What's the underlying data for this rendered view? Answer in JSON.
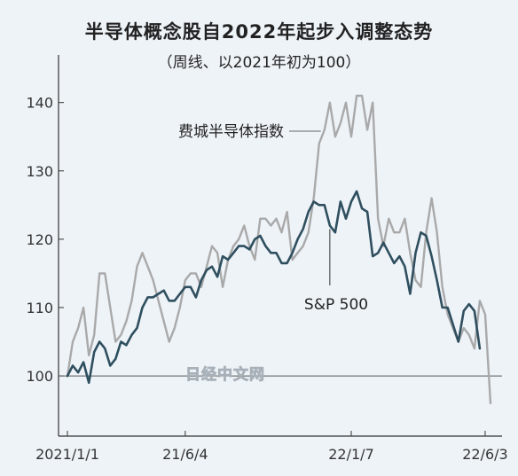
{
  "chart_data": {
    "type": "line",
    "title": "半导体概念股自2022年起步入调整态势",
    "subtitle": "（周线、以2021年初为100）",
    "xlabel": "",
    "ylabel": "",
    "ylim": [
      86,
      148
    ],
    "y_ticks": [
      100,
      110,
      120,
      130,
      140
    ],
    "x_tick_labels": [
      "2021/1/1",
      "21/6/4",
      "22/1/7",
      "22/6/3"
    ],
    "grid": false,
    "reference_line": 100,
    "watermark": "日经中文网",
    "series": [
      {
        "name": "费城半导体指数",
        "color": "#a9a9a9",
        "values": [
          100,
          105,
          107,
          110,
          103,
          106,
          115,
          115,
          110,
          105,
          106,
          108,
          111,
          116,
          118,
          116,
          114,
          111,
          108,
          105,
          107,
          110,
          114,
          115,
          115,
          113,
          116,
          119,
          118,
          113,
          117,
          119,
          120,
          122,
          119,
          117,
          123,
          123,
          122,
          123,
          121,
          124,
          117,
          118,
          119,
          121,
          126,
          134,
          136,
          140,
          135,
          137,
          140,
          135,
          141,
          141,
          136,
          140,
          123,
          119,
          123,
          121,
          121,
          123,
          118,
          114,
          113,
          121,
          126,
          121,
          113,
          109,
          107,
          105,
          107,
          106,
          104,
          111,
          109,
          96
        ]
      },
      {
        "name": "S&P 500",
        "color": "#2f4f5f",
        "values": [
          100,
          101.5,
          100.5,
          102,
          99,
          103.5,
          105,
          104,
          101.5,
          102.5,
          105,
          104.5,
          106,
          107,
          110,
          111.5,
          111.5,
          112,
          112.5,
          111,
          111,
          112,
          113,
          113,
          111.5,
          114,
          115.5,
          116,
          114.5,
          117.5,
          117,
          118,
          119,
          119,
          118.5,
          120,
          120.5,
          119,
          118,
          118,
          116.5,
          116.5,
          118,
          120,
          121.5,
          124,
          125.5,
          125,
          125,
          122,
          121,
          125.5,
          123,
          125.5,
          127,
          124.5,
          124,
          117.5,
          118,
          119.5,
          118,
          116.5,
          117.5,
          116,
          112,
          118,
          121,
          120.5,
          117.5,
          114,
          110,
          110,
          107.5,
          105,
          109.5,
          110.5,
          109.5,
          104
        ]
      }
    ]
  }
}
